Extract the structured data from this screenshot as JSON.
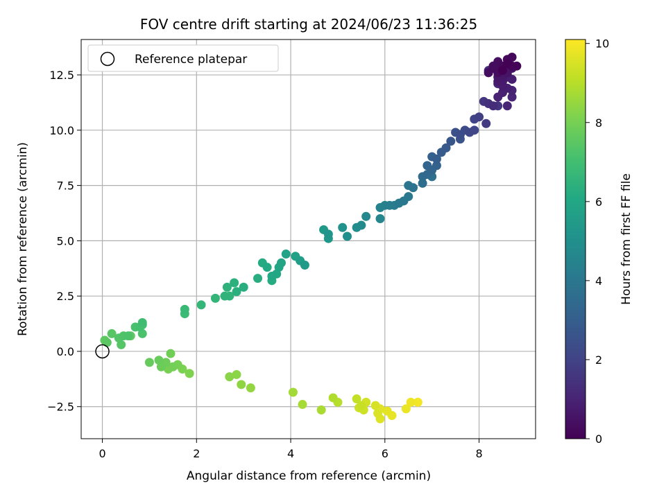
{
  "chart_data": {
    "type": "scatter",
    "title": "FOV centre drift starting at 2024/06/23 11:36:25",
    "xlabel": "Angular distance from reference (arcmin)",
    "ylabel": "Rotation from reference (arcmin)",
    "xlim": [
      -0.45,
      9.2
    ],
    "ylim": [
      -3.95,
      14.1
    ],
    "x_ticks": [
      0,
      2,
      4,
      6,
      8
    ],
    "y_ticks": [
      -2.5,
      0.0,
      2.5,
      5.0,
      7.5,
      10.0,
      12.5
    ],
    "grid": true,
    "legend": {
      "location": "upper-left",
      "entries": [
        "Reference platepar"
      ]
    },
    "reference_point": {
      "x": 0,
      "y": 0
    },
    "colorbar": {
      "label": "Hours from first FF file",
      "colormap": "viridis",
      "min": 0,
      "max": 10.1,
      "ticks": [
        0,
        2,
        4,
        6,
        8,
        10
      ]
    },
    "points": [
      [
        8.5,
        12.7,
        0.0
      ],
      [
        8.6,
        13.0,
        0.04
      ],
      [
        8.7,
        12.9,
        0.08
      ],
      [
        8.8,
        12.9,
        0.12
      ],
      [
        8.7,
        13.3,
        0.16
      ],
      [
        8.6,
        13.2,
        0.2
      ],
      [
        8.5,
        12.9,
        0.24
      ],
      [
        8.4,
        13.0,
        0.28
      ],
      [
        8.3,
        12.8,
        0.32
      ],
      [
        8.2,
        12.6,
        0.36
      ],
      [
        8.3,
        12.9,
        0.4
      ],
      [
        8.4,
        13.1,
        0.44
      ],
      [
        8.5,
        12.8,
        0.48
      ],
      [
        8.6,
        12.6,
        0.52
      ],
      [
        8.7,
        12.8,
        0.56
      ],
      [
        8.5,
        12.5,
        0.6
      ],
      [
        8.4,
        12.4,
        0.64
      ],
      [
        8.5,
        12.3,
        0.68
      ],
      [
        8.4,
        12.2,
        0.72
      ],
      [
        8.5,
        12.0,
        0.76
      ],
      [
        8.6,
        12.5,
        0.8
      ],
      [
        8.7,
        12.3,
        0.84
      ],
      [
        8.6,
        11.9,
        0.88
      ],
      [
        8.5,
        11.7,
        0.92
      ],
      [
        8.4,
        11.5,
        0.96
      ],
      [
        8.7,
        11.8,
        1.0
      ],
      [
        8.7,
        11.5,
        1.04
      ],
      [
        8.6,
        11.1,
        1.08
      ],
      [
        8.4,
        12.1,
        1.12
      ],
      [
        8.2,
        12.7,
        1.16
      ],
      [
        8.3,
        11.1,
        1.3
      ],
      [
        8.2,
        11.2,
        1.4
      ],
      [
        8.4,
        11.1,
        1.5
      ],
      [
        8.1,
        11.3,
        1.6
      ],
      [
        8.15,
        10.3,
        1.75
      ],
      [
        8.0,
        10.6,
        1.9
      ],
      [
        7.9,
        10.5,
        2.0
      ],
      [
        7.9,
        10.0,
        2.1
      ],
      [
        7.8,
        9.9,
        2.2
      ],
      [
        7.7,
        10.0,
        2.3
      ],
      [
        7.6,
        9.8,
        2.4
      ],
      [
        7.5,
        9.9,
        2.5
      ],
      [
        7.6,
        9.6,
        2.6
      ],
      [
        7.4,
        9.5,
        2.7
      ],
      [
        7.3,
        9.2,
        2.8
      ],
      [
        7.2,
        9.0,
        2.9
      ],
      [
        7.1,
        8.7,
        3.0
      ],
      [
        7.0,
        8.8,
        3.1
      ],
      [
        7.1,
        8.4,
        3.2
      ],
      [
        6.9,
        8.4,
        3.25
      ],
      [
        7.0,
        8.2,
        3.3
      ],
      [
        6.9,
        8.0,
        3.4
      ],
      [
        6.8,
        7.9,
        3.5
      ],
      [
        6.8,
        7.6,
        3.6
      ],
      [
        7.0,
        7.9,
        3.7
      ],
      [
        6.6,
        7.4,
        3.8
      ],
      [
        6.5,
        7.5,
        3.9
      ],
      [
        6.5,
        7.0,
        4.0
      ],
      [
        6.4,
        6.8,
        4.05
      ],
      [
        6.3,
        6.7,
        4.1
      ],
      [
        6.2,
        6.6,
        4.2
      ],
      [
        6.1,
        6.6,
        4.3
      ],
      [
        6.0,
        6.6,
        4.4
      ],
      [
        5.9,
        6.5,
        4.5
      ],
      [
        5.9,
        6.0,
        4.6
      ],
      [
        5.6,
        6.1,
        4.7
      ],
      [
        5.5,
        5.7,
        4.8
      ],
      [
        5.4,
        5.6,
        4.9
      ],
      [
        5.2,
        5.2,
        5.0
      ],
      [
        5.1,
        5.6,
        5.1
      ],
      [
        4.8,
        5.3,
        5.2
      ],
      [
        4.8,
        5.1,
        5.3
      ],
      [
        4.7,
        5.5,
        5.4
      ],
      [
        4.3,
        3.9,
        5.5
      ],
      [
        4.2,
        4.1,
        5.6
      ],
      [
        4.1,
        4.3,
        5.7
      ],
      [
        3.9,
        4.4,
        5.8
      ],
      [
        3.8,
        4.0,
        5.9
      ],
      [
        3.75,
        3.8,
        5.95
      ],
      [
        3.7,
        3.5,
        6.0
      ],
      [
        3.6,
        3.4,
        6.05
      ],
      [
        3.5,
        3.8,
        6.1
      ],
      [
        3.4,
        4.0,
        6.15
      ],
      [
        3.6,
        3.2,
        6.2
      ],
      [
        3.3,
        3.3,
        6.25
      ],
      [
        3.0,
        2.9,
        6.3
      ],
      [
        2.85,
        2.7,
        6.35
      ],
      [
        2.8,
        3.1,
        6.4
      ],
      [
        2.65,
        2.9,
        6.45
      ],
      [
        2.6,
        2.5,
        6.5
      ],
      [
        2.7,
        2.5,
        6.55
      ],
      [
        2.4,
        2.4,
        6.6
      ],
      [
        2.1,
        2.1,
        6.65
      ],
      [
        1.75,
        1.9,
        6.75
      ],
      [
        1.75,
        1.7,
        6.85
      ],
      [
        0.85,
        1.3,
        6.95
      ],
      [
        0.8,
        1.1,
        7.05
      ],
      [
        0.85,
        1.2,
        7.1
      ],
      [
        0.7,
        1.1,
        7.15
      ],
      [
        0.85,
        0.8,
        7.2
      ],
      [
        0.55,
        0.7,
        7.25
      ],
      [
        0.45,
        0.7,
        7.3
      ],
      [
        0.35,
        0.6,
        7.35
      ],
      [
        0.4,
        0.3,
        7.4
      ],
      [
        0.2,
        0.8,
        7.45
      ],
      [
        0.1,
        0.4,
        7.5
      ],
      [
        0.05,
        0.5,
        7.55
      ],
      [
        0.6,
        0.7,
        7.6
      ],
      [
        1.0,
        -0.5,
        7.7
      ],
      [
        1.2,
        -0.4,
        7.75
      ],
      [
        1.25,
        -0.7,
        7.8
      ],
      [
        1.35,
        -0.5,
        7.85
      ],
      [
        1.45,
        -0.1,
        7.9
      ],
      [
        1.5,
        -0.7,
        7.95
      ],
      [
        1.6,
        -0.6,
        8.0
      ],
      [
        1.4,
        -0.8,
        8.05
      ],
      [
        1.7,
        -0.8,
        8.1
      ],
      [
        1.85,
        -1.0,
        8.15
      ],
      [
        2.7,
        -1.15,
        8.3
      ],
      [
        2.85,
        -1.05,
        8.35
      ],
      [
        2.95,
        -1.5,
        8.4
      ],
      [
        3.15,
        -1.65,
        8.45
      ],
      [
        4.05,
        -1.85,
        8.7
      ],
      [
        4.25,
        -2.4,
        8.75
      ],
      [
        4.65,
        -2.65,
        8.8
      ],
      [
        4.9,
        -2.1,
        8.9
      ],
      [
        5.0,
        -2.3,
        9.0
      ],
      [
        5.4,
        -2.15,
        9.2
      ],
      [
        5.5,
        -2.45,
        9.25
      ],
      [
        5.45,
        -2.55,
        9.3
      ],
      [
        5.55,
        -2.65,
        9.35
      ],
      [
        5.6,
        -2.3,
        9.4
      ],
      [
        5.8,
        -2.45,
        9.5
      ],
      [
        5.85,
        -2.8,
        9.55
      ],
      [
        5.9,
        -3.05,
        9.6
      ],
      [
        5.9,
        -2.6,
        9.65
      ],
      [
        6.05,
        -2.7,
        9.7
      ],
      [
        6.15,
        -2.9,
        9.75
      ],
      [
        6.45,
        -2.6,
        9.8
      ],
      [
        6.55,
        -2.3,
        9.85
      ],
      [
        6.7,
        -2.3,
        9.95
      ],
      [
        8.6,
        12.4,
        0.9
      ],
      [
        8.5,
        12.2,
        1.0
      ],
      [
        8.4,
        12.6,
        0.3
      ]
    ]
  }
}
